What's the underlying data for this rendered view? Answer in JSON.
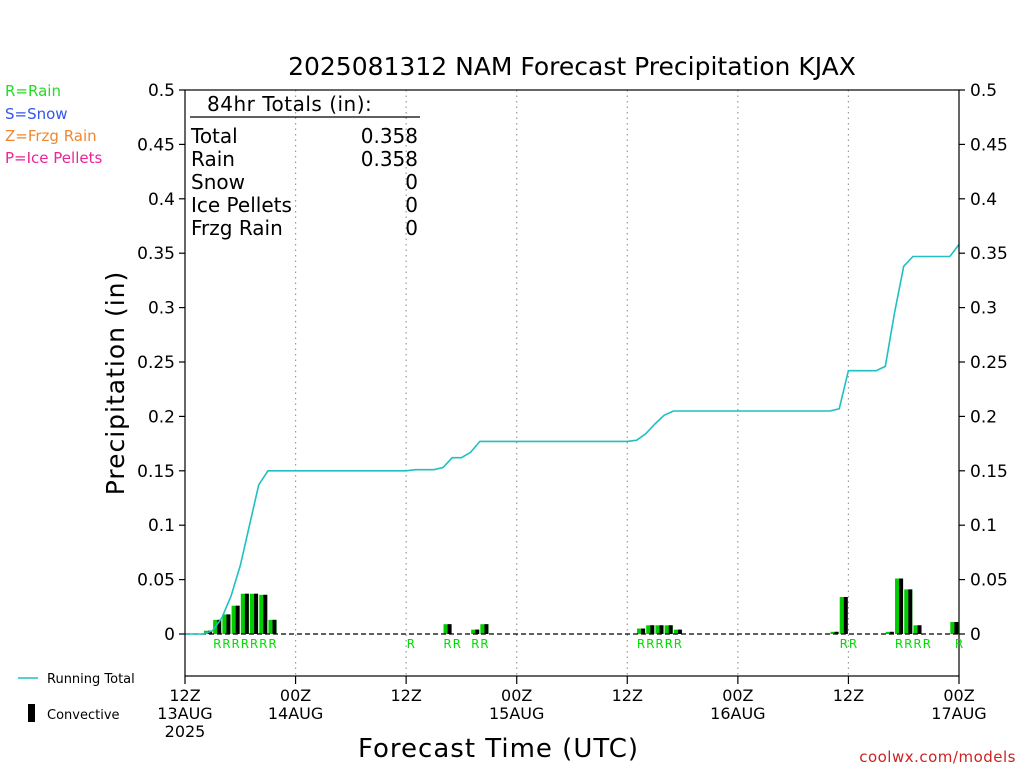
{
  "chart_data": {
    "type": "bar",
    "title": "2025081312 NAM Forecast Precipitation KJAX",
    "xlabel": "Forecast Time (UTC)",
    "ylabel": "Precipitation (in)",
    "ylim": [
      -0.04,
      0.5
    ],
    "y_ticks": [
      0,
      0.05,
      0.1,
      0.15,
      0.2,
      0.25,
      0.3,
      0.35,
      0.4,
      0.45,
      0.5
    ],
    "y_tick_labels": [
      "0",
      "0.05",
      "0.1",
      "0.15",
      "0.2",
      "0.25",
      "0.3",
      "0.35",
      "0.4",
      "0.45",
      "0.5"
    ],
    "xlim": [
      0,
      84
    ],
    "x_ticks": [
      {
        "hour": 0,
        "lines": [
          "12Z",
          "13AUG",
          "2025"
        ]
      },
      {
        "hour": 12,
        "lines": [
          "00Z",
          "14AUG"
        ]
      },
      {
        "hour": 24,
        "lines": [
          "12Z"
        ]
      },
      {
        "hour": 36,
        "lines": [
          "00Z",
          "15AUG"
        ]
      },
      {
        "hour": 48,
        "lines": [
          "12Z"
        ]
      },
      {
        "hour": 60,
        "lines": [
          "00Z",
          "16AUG"
        ]
      },
      {
        "hour": 72,
        "lines": [
          "12Z"
        ]
      },
      {
        "hour": 84,
        "lines": [
          "00Z",
          "17AUG"
        ]
      }
    ],
    "grid_hours": [
      12,
      24,
      36,
      48,
      60,
      72
    ],
    "running_total": {
      "name": "Running Total",
      "color": "#20c0c0",
      "x": [
        0,
        1,
        2,
        3,
        4,
        5,
        6,
        7,
        8,
        9,
        10,
        24,
        25,
        26,
        27,
        28,
        29,
        30,
        31,
        32,
        33,
        34,
        48,
        49,
        50,
        51,
        52,
        53,
        70,
        71,
        72,
        75,
        76,
        77,
        78,
        79,
        80,
        83,
        84
      ],
      "y": [
        0,
        0,
        0,
        0.003,
        0.015,
        0.035,
        0.063,
        0.1,
        0.137,
        0.15,
        0.15,
        0.15,
        0.151,
        0.151,
        0.151,
        0.153,
        0.162,
        0.162,
        0.167,
        0.177,
        0.177,
        0.177,
        0.177,
        0.178,
        0.184,
        0.193,
        0.201,
        0.205,
        0.205,
        0.207,
        0.242,
        0.242,
        0.246,
        0.295,
        0.338,
        0.347,
        0.347,
        0.347,
        0.358
      ]
    },
    "bars": {
      "color": "#00cc00",
      "convective_color": "#000000",
      "hours": [
        3,
        4,
        5,
        6,
        7,
        8,
        9,
        10,
        29,
        33,
        32,
        50,
        51,
        52,
        53,
        54,
        71,
        72,
        77,
        78,
        79,
        80,
        84
      ],
      "values": [
        0.003,
        0.013,
        0.018,
        0.026,
        0.037,
        0.037,
        0.036,
        0.013,
        0.009,
        0.009,
        0.004,
        0.005,
        0.008,
        0.008,
        0.008,
        0.004,
        0.002,
        0.034,
        0.002,
        0.051,
        0.041,
        0.008,
        0.011
      ]
    },
    "ptype_labels": {
      "color": "#00dd00",
      "items": [
        {
          "hour": 3.5,
          "text": "R"
        },
        {
          "hour": 4.5,
          "text": "R"
        },
        {
          "hour": 5.5,
          "text": "R"
        },
        {
          "hour": 6.5,
          "text": "R"
        },
        {
          "hour": 7.5,
          "text": "R"
        },
        {
          "hour": 8.5,
          "text": "R"
        },
        {
          "hour": 9.5,
          "text": "R"
        },
        {
          "hour": 24.5,
          "text": "R"
        },
        {
          "hour": 28.5,
          "text": "R"
        },
        {
          "hour": 29.5,
          "text": "R"
        },
        {
          "hour": 31.5,
          "text": "R"
        },
        {
          "hour": 32.5,
          "text": "R"
        },
        {
          "hour": 49.5,
          "text": "R"
        },
        {
          "hour": 50.5,
          "text": "R"
        },
        {
          "hour": 51.5,
          "text": "R"
        },
        {
          "hour": 52.5,
          "text": "R"
        },
        {
          "hour": 53.5,
          "text": "R"
        },
        {
          "hour": 71.5,
          "text": "R"
        },
        {
          "hour": 72.5,
          "text": "R"
        },
        {
          "hour": 77.5,
          "text": "R"
        },
        {
          "hour": 78.5,
          "text": "R"
        },
        {
          "hour": 79.5,
          "text": "R"
        },
        {
          "hour": 80.5,
          "text": "R"
        },
        {
          "hour": 84,
          "text": "R"
        }
      ]
    },
    "totals_box": {
      "heading": "84hr Totals (in):",
      "rows": [
        {
          "label": "Total",
          "value": "0.358"
        },
        {
          "label": "Rain",
          "value": "0.358"
        },
        {
          "label": "Snow",
          "value": "0"
        },
        {
          "label": "Ice Pellets",
          "value": "0"
        },
        {
          "label": "Frzg Rain",
          "value": "0"
        }
      ]
    },
    "ptype_key": [
      {
        "text": "R=Rain",
        "color": "#22dd22"
      },
      {
        "text": "S=Snow",
        "color": "#3355ee"
      },
      {
        "text": "Z=Frzg Rain",
        "color": "#ee8833"
      },
      {
        "text": "P=Ice Pellets",
        "color": "#ee2299"
      }
    ],
    "legend": [
      {
        "kind": "line",
        "text": "Running Total",
        "color": "#20c0c0"
      },
      {
        "kind": "bar",
        "text": "Convective",
        "color": "#000000"
      }
    ],
    "credit": {
      "text": "coolwx.com/models",
      "color": "#cc2222"
    }
  }
}
